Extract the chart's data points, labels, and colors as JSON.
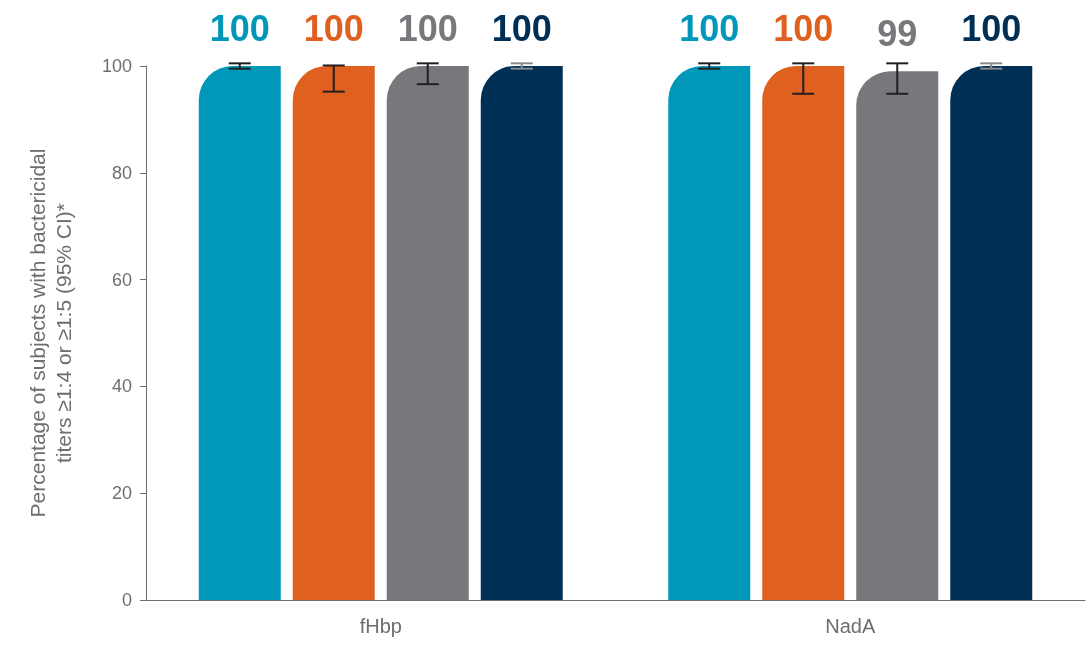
{
  "chart_data": {
    "type": "bar",
    "ylabel": "Percentage of subjects with bactericidal\ntiters ≥1:4 or ≥1:5 (95% CI)*",
    "categories": [
      "fHbp",
      "NadA"
    ],
    "series": [
      {
        "color": "#0097b9",
        "values": [
          100,
          100
        ],
        "errors": [
          [
            99.5,
            100.5
          ],
          [
            99.5,
            100.5
          ]
        ]
      },
      {
        "color": "#e0601f",
        "values": [
          100,
          100
        ],
        "errors": [
          [
            95.2,
            100.1
          ],
          [
            94.8,
            100.5
          ]
        ]
      },
      {
        "color": "#77787c",
        "values": [
          100,
          99
        ],
        "errors": [
          [
            96.6,
            100.5
          ],
          [
            94.8,
            100.5
          ]
        ]
      },
      {
        "color": "#002f56",
        "values": [
          100,
          100
        ],
        "errors": [
          [
            99.5,
            100.5
          ],
          [
            99.5,
            100.5
          ]
        ]
      }
    ],
    "ylim": [
      0,
      100
    ],
    "yticks": [
      0,
      20,
      40,
      60,
      80,
      100
    ],
    "data_labels": true
  }
}
